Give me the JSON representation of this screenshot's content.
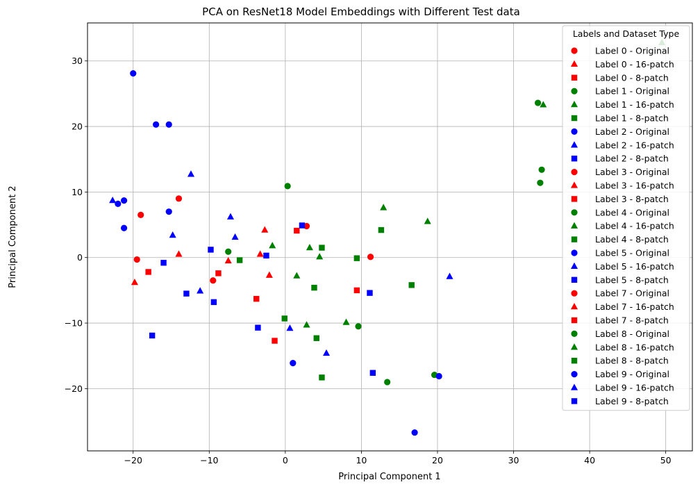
{
  "chart_data": {
    "type": "scatter",
    "title": "PCA on ResNet18 Model Embeddings with Different Test data",
    "xlabel": "Principal Component 1",
    "ylabel": "Principal Component 2",
    "xlim": [
      -26,
      53.5
    ],
    "ylim": [
      -29.5,
      35.8
    ],
    "xticks": [
      -20,
      -10,
      0,
      10,
      20,
      30,
      40,
      50
    ],
    "yticks": [
      -20,
      -10,
      0,
      10,
      20,
      30
    ],
    "grid": true,
    "legend": {
      "title": "Labels and Dataset Type",
      "placement": "top-right"
    },
    "colors": {
      "red": "#ff0000",
      "green": "#008000",
      "blue": "#0000ff"
    },
    "markers": {
      "Original": "circle",
      "16-patch": "triangle",
      "8-patch": "square"
    },
    "series": [
      {
        "name": "Label 0 - Original",
        "color": "red",
        "marker": "circle",
        "points": [
          [
            -19,
            6.5
          ],
          [
            -14,
            9
          ],
          [
            -9.5,
            -3.5
          ],
          [
            -19.5,
            -0.3
          ],
          [
            2.8,
            4.8
          ],
          [
            11.2,
            0.1
          ]
        ]
      },
      {
        "name": "Label 0 - 16-patch",
        "color": "red",
        "marker": "triangle",
        "points": [
          [
            -14,
            0.5
          ],
          [
            -19.8,
            -3.8
          ],
          [
            -7.5,
            -0.5
          ],
          [
            -2.7,
            4.2
          ],
          [
            -3.3,
            0.5
          ],
          [
            -2.1,
            -2.7
          ]
        ]
      },
      {
        "name": "Label 0 - 8-patch",
        "color": "red",
        "marker": "square",
        "points": [
          [
            -18,
            -2.2
          ],
          [
            -8.8,
            -2.4
          ],
          [
            1.5,
            4.1
          ],
          [
            -3.8,
            -6.3
          ],
          [
            -1.4,
            -12.7
          ],
          [
            9.4,
            -5
          ]
        ]
      },
      {
        "name": "Label 1 - Original",
        "color": "green",
        "marker": "circle",
        "points": [
          [
            0.3,
            10.9
          ],
          [
            -7.5,
            0.9
          ],
          [
            9.6,
            -10.5
          ],
          [
            13.4,
            -19
          ],
          [
            19.6,
            -17.9
          ],
          [
            33.2,
            23.6
          ],
          [
            33.7,
            13.4
          ],
          [
            33.5,
            11.4
          ]
        ]
      },
      {
        "name": "Label 1 - 16-patch",
        "color": "green",
        "marker": "triangle",
        "points": [
          [
            -1.7,
            1.8
          ],
          [
            3.2,
            1.5
          ],
          [
            4.5,
            0.1
          ],
          [
            1.5,
            -2.8
          ],
          [
            2.8,
            -10.3
          ],
          [
            8,
            -9.9
          ],
          [
            12.9,
            7.6
          ],
          [
            18.7,
            5.5
          ],
          [
            33.9,
            23.3
          ],
          [
            49.5,
            32.8
          ]
        ]
      },
      {
        "name": "Label 1 - 8-patch",
        "color": "green",
        "marker": "square",
        "points": [
          [
            -6,
            -0.4
          ],
          [
            -0.1,
            -9.3
          ],
          [
            3.8,
            -4.6
          ],
          [
            4.1,
            -12.3
          ],
          [
            4.8,
            1.5
          ],
          [
            4.8,
            -18.3
          ],
          [
            9.4,
            -0.1
          ],
          [
            12.6,
            4.2
          ],
          [
            16.6,
            -4.2
          ]
        ]
      },
      {
        "name": "Label 2 - Original",
        "color": "blue",
        "marker": "circle",
        "points": [
          [
            -20,
            28.1
          ],
          [
            -17,
            20.3
          ],
          [
            -15.3,
            20.3
          ],
          [
            -21.2,
            8.7
          ],
          [
            -22,
            8.2
          ],
          [
            -21.2,
            4.5
          ],
          [
            -15.3,
            7
          ],
          [
            1,
            -16.1
          ],
          [
            17,
            -26.7
          ],
          [
            20.2,
            -18.1
          ]
        ]
      },
      {
        "name": "Label 2 - 16-patch",
        "color": "blue",
        "marker": "triangle",
        "points": [
          [
            -22.7,
            8.7
          ],
          [
            -12.4,
            12.7
          ],
          [
            -14.8,
            3.4
          ],
          [
            -7.2,
            6.2
          ],
          [
            -6.6,
            3.1
          ],
          [
            -11.2,
            -5.1
          ],
          [
            0.6,
            -10.8
          ],
          [
            5.4,
            -14.6
          ],
          [
            21.6,
            -2.9
          ]
        ]
      },
      {
        "name": "Label 2 - 8-patch",
        "color": "blue",
        "marker": "square",
        "points": [
          [
            -16,
            -0.8
          ],
          [
            -9.8,
            1.2
          ],
          [
            -13,
            -5.5
          ],
          [
            -9.4,
            -6.8
          ],
          [
            -2.5,
            0.3
          ],
          [
            2.2,
            4.9
          ],
          [
            -3.6,
            -10.7
          ],
          [
            11.1,
            -5.4
          ],
          [
            11.5,
            -17.6
          ],
          [
            -17.5,
            -11.9
          ]
        ]
      },
      {
        "name": "Label 3 - Original",
        "color": "red",
        "marker": "circle",
        "points": []
      },
      {
        "name": "Label 3 - 16-patch",
        "color": "red",
        "marker": "triangle",
        "points": []
      },
      {
        "name": "Label 3 - 8-patch",
        "color": "red",
        "marker": "square",
        "points": []
      },
      {
        "name": "Label 4 - Original",
        "color": "green",
        "marker": "circle",
        "points": []
      },
      {
        "name": "Label 4 - 16-patch",
        "color": "green",
        "marker": "triangle",
        "points": []
      },
      {
        "name": "Label 4 - 8-patch",
        "color": "green",
        "marker": "square",
        "points": []
      },
      {
        "name": "Label 5 - Original",
        "color": "blue",
        "marker": "circle",
        "points": []
      },
      {
        "name": "Label 5 - 16-patch",
        "color": "blue",
        "marker": "triangle",
        "points": []
      },
      {
        "name": "Label 5 - 8-patch",
        "color": "blue",
        "marker": "square",
        "points": []
      },
      {
        "name": "Label 7 - Original",
        "color": "red",
        "marker": "circle",
        "points": []
      },
      {
        "name": "Label 7 - 16-patch",
        "color": "red",
        "marker": "triangle",
        "points": []
      },
      {
        "name": "Label 7 - 8-patch",
        "color": "red",
        "marker": "square",
        "points": []
      },
      {
        "name": "Label 8 - Original",
        "color": "green",
        "marker": "circle",
        "points": []
      },
      {
        "name": "Label 8 - 16-patch",
        "color": "green",
        "marker": "triangle",
        "points": []
      },
      {
        "name": "Label 8 - 8-patch",
        "color": "green",
        "marker": "square",
        "points": []
      },
      {
        "name": "Label 9 - Original",
        "color": "blue",
        "marker": "circle",
        "points": []
      },
      {
        "name": "Label 9 - 16-patch",
        "color": "blue",
        "marker": "triangle",
        "points": []
      },
      {
        "name": "Label 9 - 8-patch",
        "color": "blue",
        "marker": "square",
        "points": []
      }
    ]
  }
}
